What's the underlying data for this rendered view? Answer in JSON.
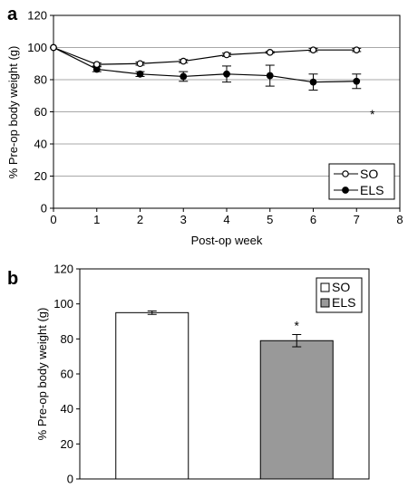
{
  "chart_data": [
    {
      "panel_label": "a",
      "type": "line",
      "xlabel": "Post-op week",
      "ylabel": "% Pre-op body weight (g)",
      "xlim": [
        0,
        8
      ],
      "ylim": [
        0,
        120
      ],
      "xticks": [
        0,
        1,
        2,
        3,
        4,
        5,
        6,
        7,
        8
      ],
      "yticks": [
        0,
        20,
        40,
        60,
        80,
        100,
        120
      ],
      "grid": "horizontal",
      "legend_position": "bottom-right",
      "x": [
        0,
        1,
        2,
        3,
        4,
        5,
        6,
        7
      ],
      "series": [
        {
          "name": "SO",
          "marker": "open-circle",
          "values": [
            100,
            89.5,
            90,
            91.5,
            95.5,
            97,
            98.5,
            98.5
          ],
          "errors": [
            0,
            1,
            1,
            1,
            1,
            0.5,
            1,
            1
          ]
        },
        {
          "name": "ELS",
          "marker": "filled-circle",
          "values": [
            100,
            86.5,
            83.5,
            82,
            83.5,
            82.5,
            78.5,
            79
          ],
          "errors": [
            0,
            1.5,
            1.5,
            3,
            5,
            6.5,
            5,
            4.5
          ]
        }
      ],
      "annotation": "*"
    },
    {
      "panel_label": "b",
      "type": "bar",
      "ylabel": "% Pre-op body weight (g)",
      "ylim": [
        0,
        120
      ],
      "yticks": [
        0,
        20,
        40,
        60,
        80,
        100,
        120
      ],
      "grid": "none",
      "legend_position": "top-right",
      "categories": [
        "SO",
        "ELS"
      ],
      "values": [
        95,
        79
      ],
      "errors": [
        1,
        3.5
      ],
      "colors": [
        "#ffffff",
        "#999999"
      ],
      "annotation": "*"
    }
  ]
}
